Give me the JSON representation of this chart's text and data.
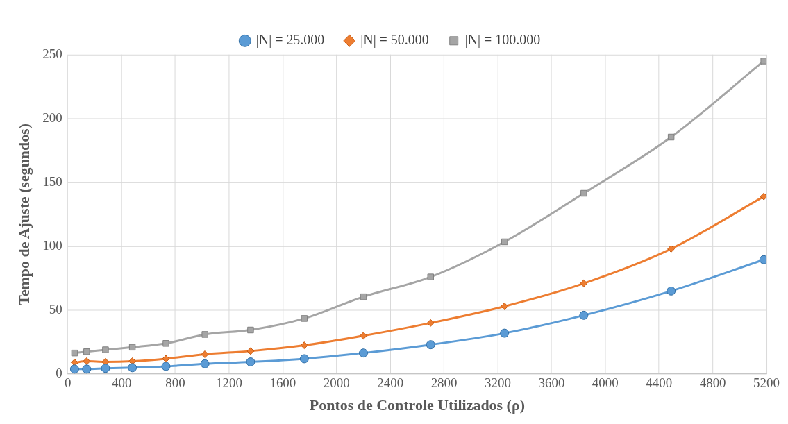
{
  "chart_data": {
    "type": "line",
    "xlabel": "Pontos de Controle Utilizados (ρ)",
    "ylabel": "Tempo de Ajuste (segundos)",
    "x": [
      50,
      140,
      280,
      480,
      730,
      1020,
      1360,
      1760,
      2200,
      2700,
      3250,
      3840,
      4490,
      5180
    ],
    "series": [
      {
        "name": "|N| = 25.000",
        "color": "#5b9bd5",
        "marker": "circle",
        "values": [
          3.9,
          3.9,
          4.5,
          5,
          6,
          8,
          9.5,
          12,
          16.5,
          23,
          32,
          46,
          65,
          89.5
        ]
      },
      {
        "name": "|N| = 50.000",
        "color": "#ed7d31",
        "marker": "diamond",
        "values": [
          9,
          10,
          9.5,
          10,
          12,
          15.5,
          18,
          22.5,
          30,
          40,
          53,
          71,
          98,
          139
        ]
      },
      {
        "name": "|N| = 100.000",
        "color": "#a5a5a5",
        "marker": "square",
        "values": [
          16.5,
          17.5,
          19,
          21,
          24,
          31,
          34.5,
          43.5,
          60.5,
          76,
          103.5,
          141.5,
          185.5,
          245
        ]
      }
    ],
    "xlim": [
      0,
      5200
    ],
    "xticks": [
      0,
      400,
      800,
      1200,
      1600,
      2000,
      2400,
      2800,
      3200,
      3600,
      4000,
      4400,
      4800,
      5200
    ],
    "ylim": [
      0,
      250
    ],
    "yticks": [
      0,
      50,
      100,
      150,
      200,
      250
    ],
    "grid": true,
    "legend": "top",
    "line_style": "solid"
  }
}
